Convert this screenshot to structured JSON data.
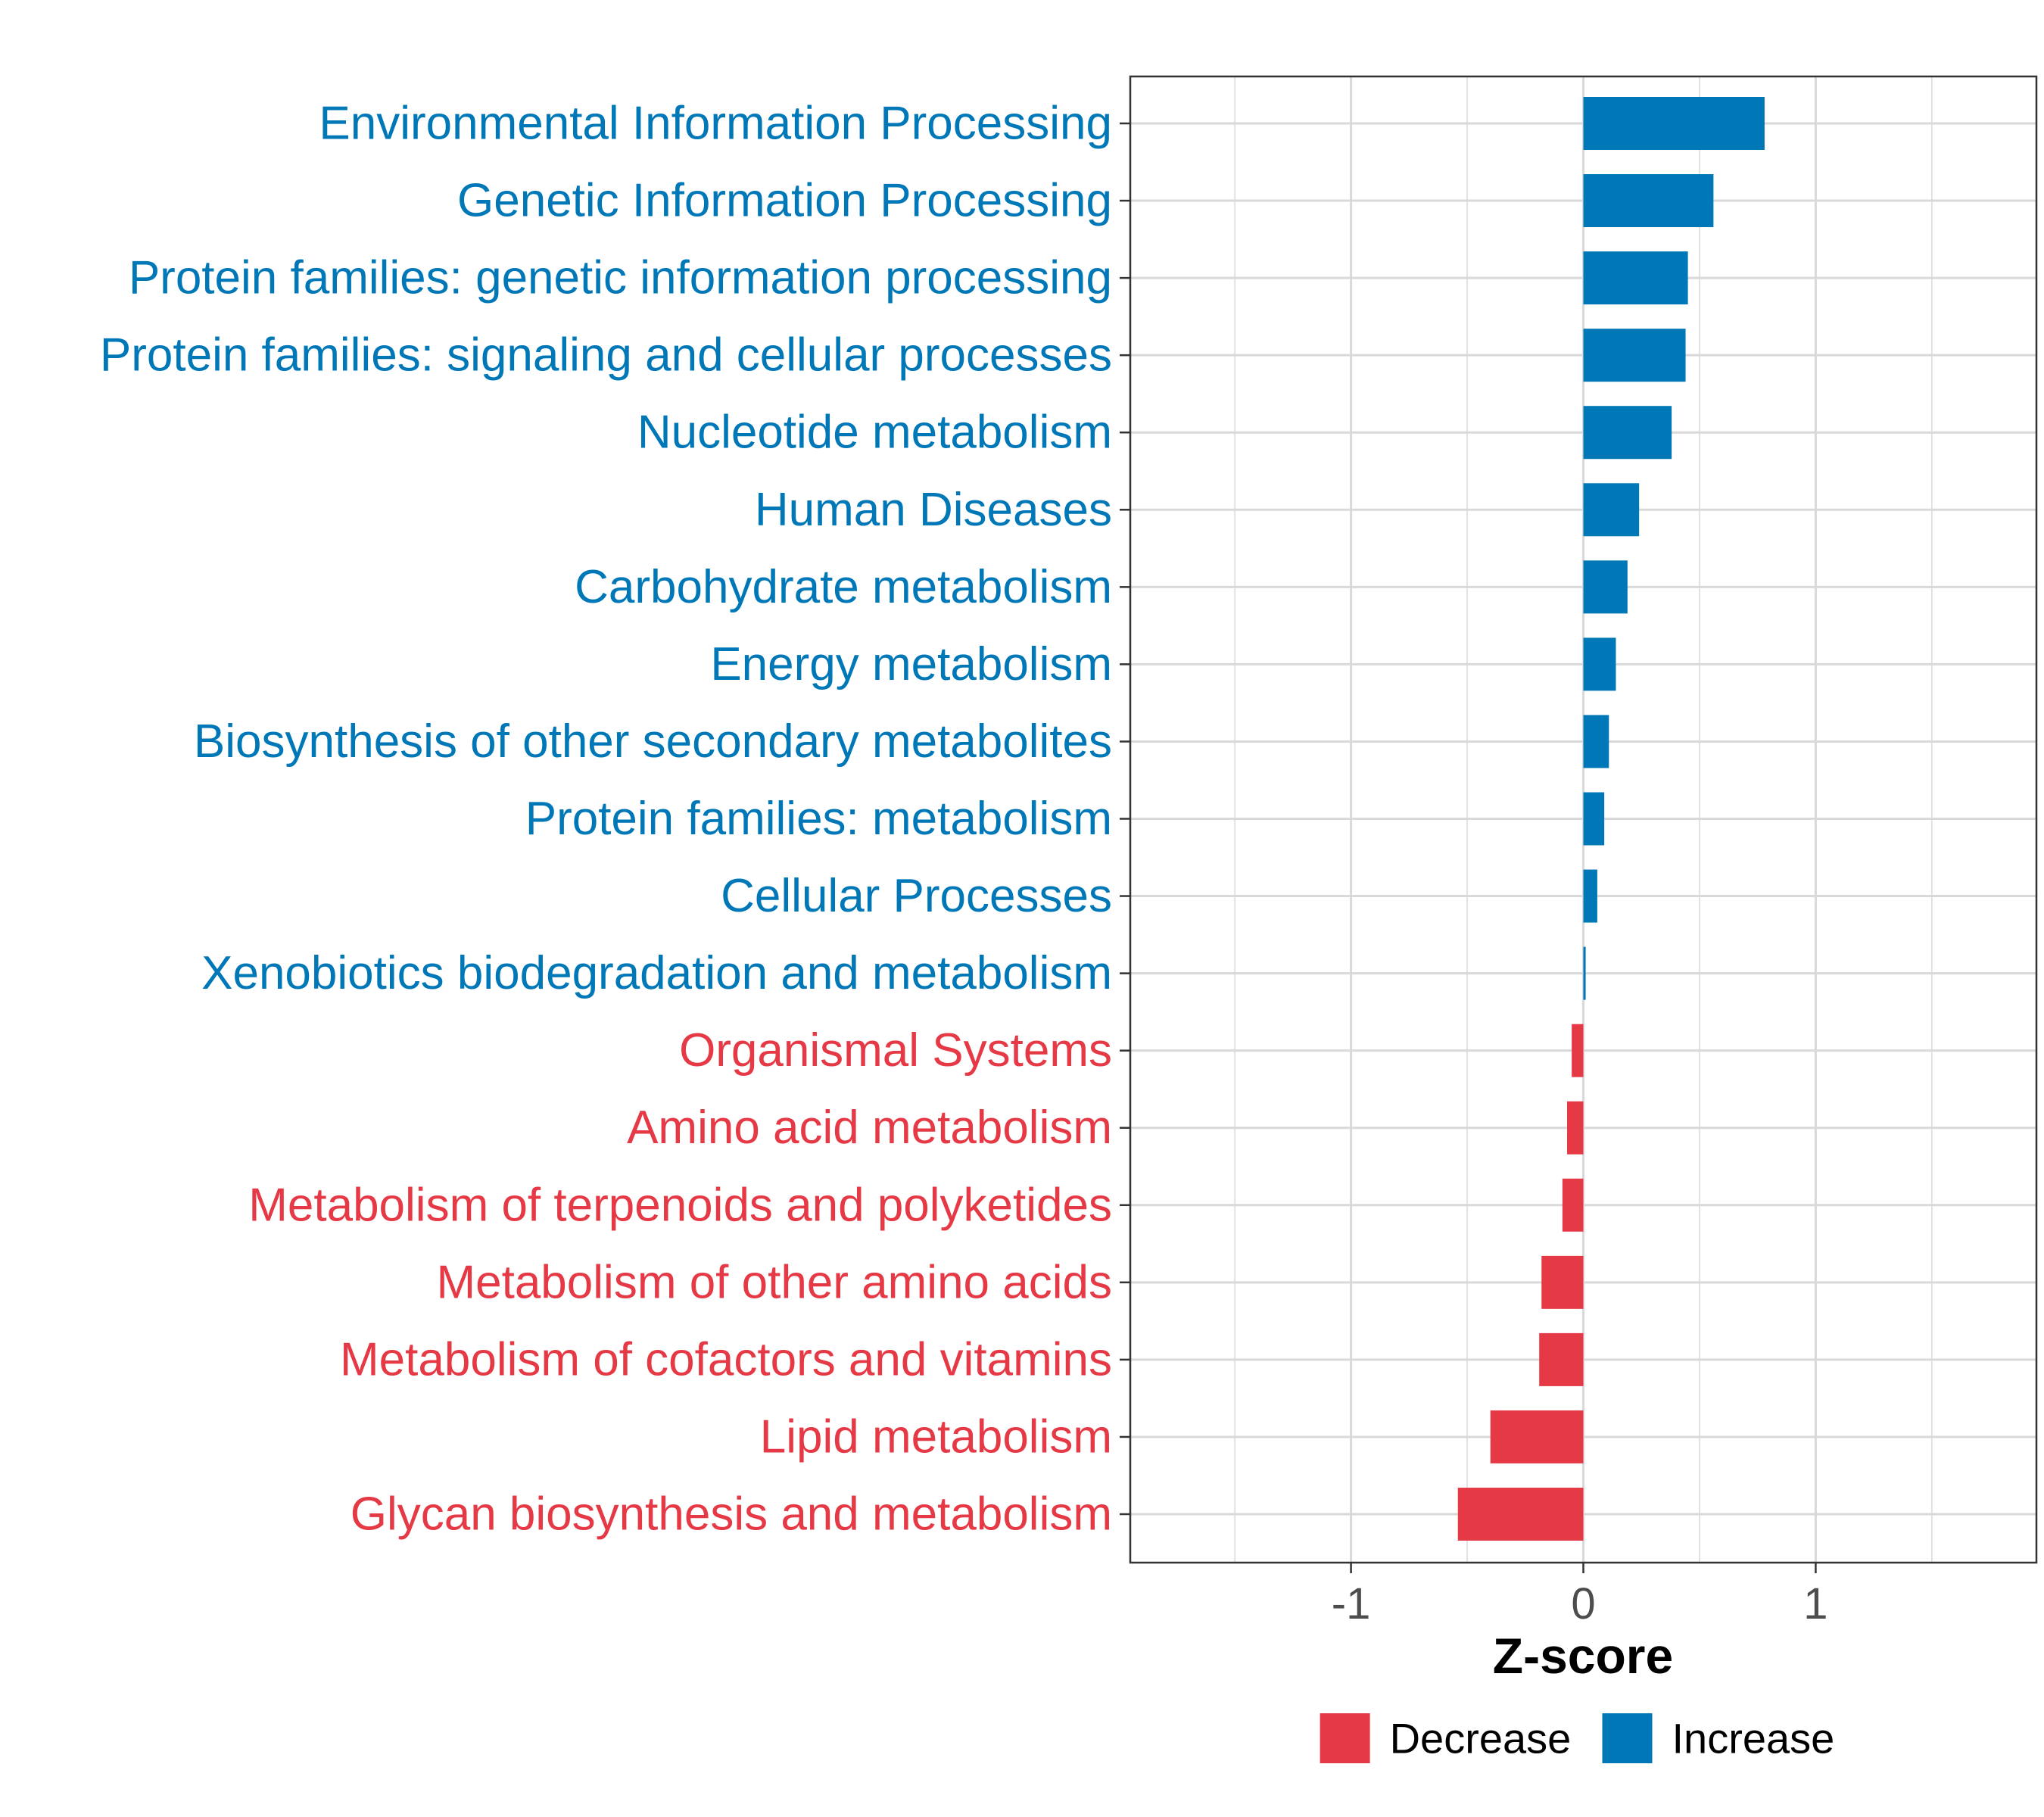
{
  "chart_data": {
    "type": "bar",
    "orientation": "horizontal",
    "title": "",
    "xlabel": "Z-score",
    "ylabel": "",
    "xlim": [
      -1.95,
      1.95
    ],
    "xticks": [
      {
        "value": -1,
        "label": "-1"
      },
      {
        "value": 0,
        "label": "0"
      },
      {
        "value": 1,
        "label": "1"
      }
    ],
    "grid": true,
    "colors": {
      "Decrease": "#e63946",
      "Increase": "#0077b6"
    },
    "categories": [
      "Environmental Information Processing",
      "Genetic Information Processing",
      "Protein families: genetic information processing",
      "Protein families: signaling and cellular processes",
      "Nucleotide metabolism",
      "Human Diseases",
      "Carbohydrate metabolism",
      "Energy metabolism",
      "Biosynthesis of other secondary metabolites",
      "Protein families: metabolism",
      "Cellular Processes",
      "Xenobiotics biodegradation and metabolism",
      "Organismal Systems",
      "Amino acid metabolism",
      "Metabolism of terpenoids and polyketides",
      "Metabolism of other amino acids",
      "Metabolism of cofactors and vitamins",
      "Lipid metabolism",
      "Glycan biosynthesis and metabolism"
    ],
    "values": [
      0.78,
      0.56,
      0.45,
      0.44,
      0.38,
      0.24,
      0.19,
      0.14,
      0.11,
      0.09,
      0.06,
      0.01,
      -0.05,
      -0.07,
      -0.09,
      -0.18,
      -0.19,
      -0.4,
      -0.54
    ],
    "groups": [
      "Increase",
      "Increase",
      "Increase",
      "Increase",
      "Increase",
      "Increase",
      "Increase",
      "Increase",
      "Increase",
      "Increase",
      "Increase",
      "Increase",
      "Decrease",
      "Decrease",
      "Decrease",
      "Decrease",
      "Decrease",
      "Decrease",
      "Decrease"
    ],
    "legend": {
      "position": "bottom",
      "entries": [
        {
          "label": "Decrease",
          "color": "#e63946"
        },
        {
          "label": "Increase",
          "color": "#0077b6"
        }
      ]
    }
  }
}
